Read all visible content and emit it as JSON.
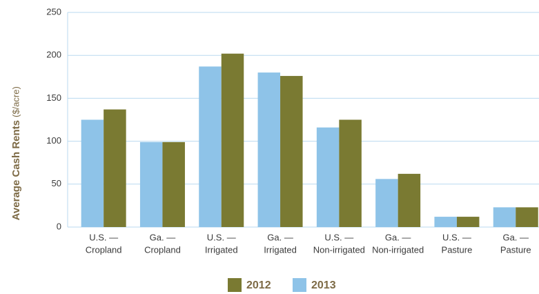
{
  "chart_data": {
    "type": "bar",
    "y_label": "Average Cash Rents",
    "y_unit": "($/acre)",
    "categories": [
      [
        "U.S. —",
        "Cropland"
      ],
      [
        "Ga. —",
        "Cropland"
      ],
      [
        "U.S. —",
        "Irrigated"
      ],
      [
        "Ga. —",
        "Irrigated"
      ],
      [
        "U.S. —",
        "Non-irrigated"
      ],
      [
        "Ga. —",
        "Non-irrigated"
      ],
      [
        "U.S. —",
        "Pasture"
      ],
      [
        "Ga. —",
        "Pasture"
      ]
    ],
    "series": [
      {
        "name": "2012",
        "color": "#7a7a32",
        "values": [
          137,
          99,
          202,
          176,
          125,
          62,
          12,
          23
        ]
      },
      {
        "name": "2013",
        "color": "#8ec3e8",
        "values": [
          125,
          99,
          187,
          180,
          116,
          56,
          12,
          23
        ]
      }
    ],
    "ylim": [
      0,
      250
    ],
    "yticks": [
      0,
      50,
      100,
      150,
      200,
      250
    ],
    "grid": true
  }
}
